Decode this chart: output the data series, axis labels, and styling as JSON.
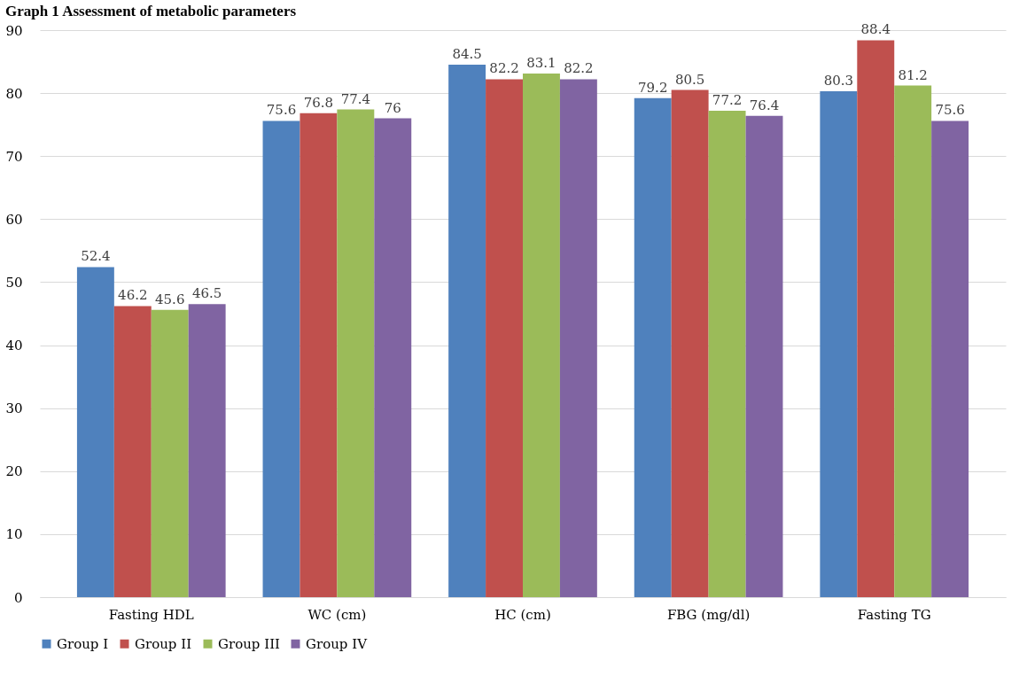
{
  "chart_data": {
    "type": "bar",
    "title": "Graph 1 Assessment of metabolic parameters",
    "categories": [
      "Fasting HDL",
      "WC (cm)",
      "HC (cm)",
      "FBG (mg/dl)",
      "Fasting TG"
    ],
    "series": [
      {
        "name": "Group I",
        "color": "#4f81bd",
        "values": [
          52.4,
          75.6,
          84.5,
          79.2,
          80.3
        ]
      },
      {
        "name": "Group II",
        "color": "#c0504d",
        "values": [
          46.2,
          76.8,
          82.2,
          80.5,
          88.4
        ]
      },
      {
        "name": "Group III",
        "color": "#9bbb59",
        "values": [
          45.6,
          77.4,
          83.1,
          77.2,
          81.2
        ]
      },
      {
        "name": "Group IV",
        "color": "#8064a2",
        "values": [
          46.5,
          76,
          82.2,
          76.4,
          75.6
        ]
      }
    ],
    "ylim": [
      0,
      90
    ],
    "yticks": [
      0,
      10,
      20,
      30,
      40,
      50,
      60,
      70,
      80,
      90
    ],
    "grid": "y",
    "legend": "bottom",
    "data_labels": true
  }
}
